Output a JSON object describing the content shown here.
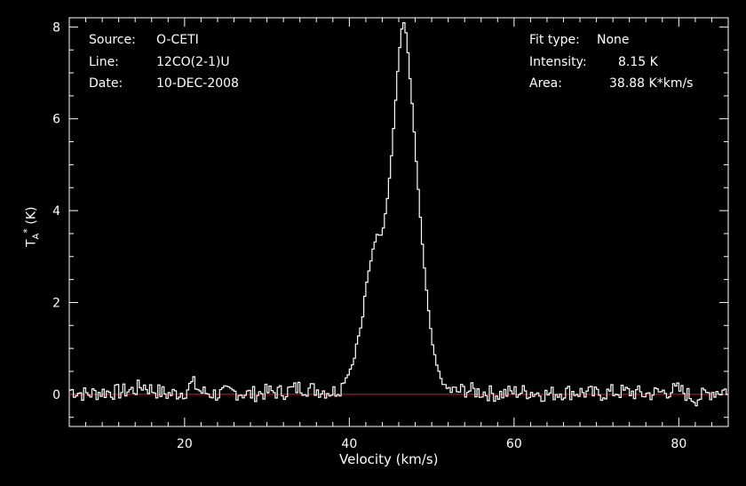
{
  "header": {
    "source_key": "Source:",
    "source_val": "O-CETI",
    "line_key": "Line:",
    "line_val": "12CO(2-1)U",
    "date_key": "Date:",
    "date_val": "10-DEC-2008",
    "fit_key": "Fit type:",
    "fit_val": "None",
    "intensity_key": "Intensity:",
    "intensity_val": "8.15 K",
    "area_key": "Area:",
    "area_val": "38.88 K*km/s"
  },
  "chart_data": {
    "type": "line",
    "xlabel": "Velocity (km/s)",
    "ylabel_main": "T",
    "ylabel_sub": "A",
    "ylabel_sup": "*",
    "ylabel_unit": "(K)",
    "xlim": [
      6,
      86
    ],
    "ylim": [
      -0.7,
      8.2
    ],
    "xticks": [
      20,
      40,
      60,
      80
    ],
    "yticks": [
      0,
      2,
      4,
      6,
      8
    ],
    "baseline": 0,
    "colors": {
      "spectrum": "#ffffff",
      "baseline": "#d01010",
      "axes": "#ffffff"
    },
    "series": [
      {
        "x": [
          6,
          8,
          10,
          12,
          14,
          15,
          16,
          18,
          20,
          21,
          22,
          24,
          26,
          28,
          30,
          32,
          34,
          36,
          38,
          39,
          40,
          40.5,
          41,
          41.5,
          42,
          42.5,
          43,
          43.5,
          44,
          44.5,
          45,
          45.5,
          46,
          46.3,
          46.6,
          47,
          47.5,
          48,
          48.5,
          49,
          49.5,
          50,
          50.5,
          51,
          51.5,
          52,
          53,
          54,
          56,
          58,
          60,
          62,
          64,
          66,
          68,
          70,
          72,
          74,
          76,
          78,
          80,
          82,
          84,
          86
        ],
        "y": [
          0.1,
          0,
          0.05,
          0.05,
          0.1,
          0.2,
          0.1,
          0,
          0.05,
          0.25,
          0.05,
          0,
          0.05,
          0,
          0.05,
          0.05,
          0.15,
          0.1,
          0.05,
          0.15,
          0.5,
          0.7,
          1.2,
          1.5,
          2.3,
          2.8,
          3.3,
          3.5,
          3.5,
          4.1,
          4.9,
          6.1,
          7.3,
          7.9,
          8.15,
          7.7,
          6.6,
          5.4,
          4.1,
          3.0,
          2.0,
          1.2,
          0.7,
          0.4,
          0.2,
          0.1,
          0.05,
          0.1,
          0.05,
          0,
          0.05,
          0.05,
          0,
          0.05,
          0.05,
          0,
          0.05,
          0.05,
          0,
          0.05,
          0.1,
          -0.1,
          0.05,
          0.1
        ]
      }
    ]
  }
}
